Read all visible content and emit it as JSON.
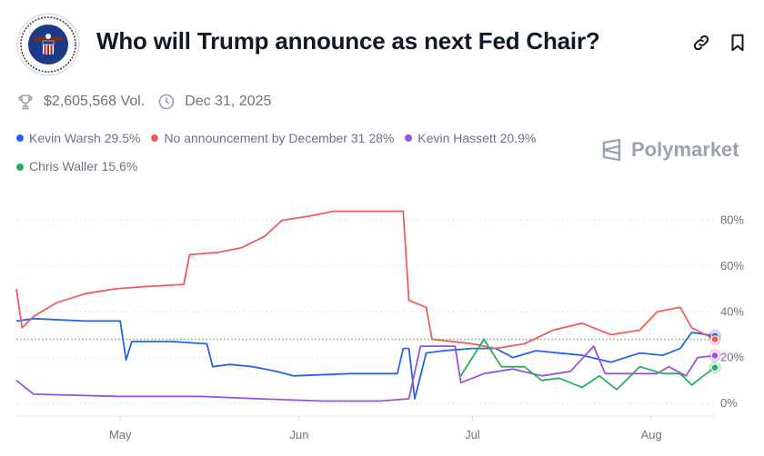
{
  "header": {
    "title": "Who will Trump announce as next Fed Chair?",
    "seal_icon": "federal-reserve-seal",
    "link_icon": "link-icon",
    "bookmark_icon": "bookmark-icon"
  },
  "meta": {
    "volume": "$2,605,568 Vol.",
    "end_date": "Dec 31, 2025"
  },
  "legend": [
    {
      "label": "Kevin Warsh 29.5%",
      "color": "#2563eb"
    },
    {
      "label": "No announcement by December 31 28%",
      "color": "#ef5b5b"
    },
    {
      "label": "Kevin Hassett 20.9%",
      "color": "#9b51e0"
    },
    {
      "label": "Chris Waller 15.6%",
      "color": "#27ae60"
    }
  ],
  "brand": "Polymarket",
  "chart_data": {
    "type": "line",
    "x_ticks": [
      "May",
      "Jun",
      "Jul",
      "Aug"
    ],
    "y_ticks": [
      "0%",
      "20%",
      "40%",
      "60%",
      "80%"
    ],
    "ylim": [
      0,
      85
    ],
    "xlim": [
      "2025-04-13",
      "2025-08-12"
    ],
    "grid": true,
    "reference_line": 28,
    "series": [
      {
        "name": "Kevin Warsh",
        "color": "#2563eb",
        "points": [
          [
            "2025-04-13",
            36
          ],
          [
            "2025-04-16",
            37
          ],
          [
            "2025-04-25",
            36
          ],
          [
            "2025-05-01",
            36
          ],
          [
            "2025-05-02",
            19
          ],
          [
            "2025-05-03",
            27
          ],
          [
            "2025-05-10",
            27
          ],
          [
            "2025-05-16",
            26
          ],
          [
            "2025-05-17",
            16
          ],
          [
            "2025-05-20",
            17
          ],
          [
            "2025-05-24",
            16
          ],
          [
            "2025-05-28",
            14
          ],
          [
            "2025-05-31",
            12
          ],
          [
            "2025-06-10",
            13
          ],
          [
            "2025-06-18",
            13
          ],
          [
            "2025-06-19",
            24
          ],
          [
            "2025-06-20",
            24
          ],
          [
            "2025-06-21",
            2
          ],
          [
            "2025-06-23",
            22
          ],
          [
            "2025-06-26",
            23
          ],
          [
            "2025-07-01",
            24
          ],
          [
            "2025-07-05",
            24
          ],
          [
            "2025-07-08",
            20
          ],
          [
            "2025-07-12",
            23
          ],
          [
            "2025-07-20",
            21
          ],
          [
            "2025-07-25",
            18
          ],
          [
            "2025-07-30",
            22
          ],
          [
            "2025-08-03",
            21
          ],
          [
            "2025-08-06",
            24
          ],
          [
            "2025-08-08",
            31
          ],
          [
            "2025-08-12",
            29.5
          ]
        ]
      },
      {
        "name": "No announcement by December 31",
        "color": "#ef5b5b",
        "points": [
          [
            "2025-04-13",
            50
          ],
          [
            "2025-04-14",
            33
          ],
          [
            "2025-04-16",
            38
          ],
          [
            "2025-04-20",
            44
          ],
          [
            "2025-04-25",
            48
          ],
          [
            "2025-04-30",
            50
          ],
          [
            "2025-05-05",
            51
          ],
          [
            "2025-05-12",
            52
          ],
          [
            "2025-05-13",
            65
          ],
          [
            "2025-05-18",
            66
          ],
          [
            "2025-05-22",
            68
          ],
          [
            "2025-05-26",
            73
          ],
          [
            "2025-05-29",
            80
          ],
          [
            "2025-06-03",
            82
          ],
          [
            "2025-06-07",
            84
          ],
          [
            "2025-06-19",
            84
          ],
          [
            "2025-06-20",
            45
          ],
          [
            "2025-06-23",
            42
          ],
          [
            "2025-06-24",
            28
          ],
          [
            "2025-07-01",
            26
          ],
          [
            "2025-07-05",
            24
          ],
          [
            "2025-07-10",
            26
          ],
          [
            "2025-07-15",
            32
          ],
          [
            "2025-07-20",
            35
          ],
          [
            "2025-07-25",
            30
          ],
          [
            "2025-07-30",
            32
          ],
          [
            "2025-08-02",
            40
          ],
          [
            "2025-08-06",
            42
          ],
          [
            "2025-08-08",
            33
          ],
          [
            "2025-08-12",
            28
          ]
        ]
      },
      {
        "name": "Kevin Hassett",
        "color": "#9b51e0",
        "points": [
          [
            "2025-04-13",
            10
          ],
          [
            "2025-04-16",
            4
          ],
          [
            "2025-05-01",
            3
          ],
          [
            "2025-05-15",
            3
          ],
          [
            "2025-05-25",
            2
          ],
          [
            "2025-06-05",
            1
          ],
          [
            "2025-06-15",
            1
          ],
          [
            "2025-06-20",
            2
          ],
          [
            "2025-06-22",
            25
          ],
          [
            "2025-06-28",
            25
          ],
          [
            "2025-06-29",
            9
          ],
          [
            "2025-07-03",
            13
          ],
          [
            "2025-07-08",
            15
          ],
          [
            "2025-07-13",
            12
          ],
          [
            "2025-07-18",
            14
          ],
          [
            "2025-07-22",
            25
          ],
          [
            "2025-07-24",
            13
          ],
          [
            "2025-07-29",
            13
          ],
          [
            "2025-08-02",
            13
          ],
          [
            "2025-08-04",
            16
          ],
          [
            "2025-08-07",
            12
          ],
          [
            "2025-08-09",
            20
          ],
          [
            "2025-08-12",
            20.9
          ]
        ]
      },
      {
        "name": "Chris Waller",
        "color": "#27ae60",
        "points": [
          [
            "2025-06-29",
            12
          ],
          [
            "2025-07-03",
            28
          ],
          [
            "2025-07-06",
            16
          ],
          [
            "2025-07-10",
            16
          ],
          [
            "2025-07-13",
            10
          ],
          [
            "2025-07-16",
            11
          ],
          [
            "2025-07-20",
            7
          ],
          [
            "2025-07-23",
            12
          ],
          [
            "2025-07-26",
            6
          ],
          [
            "2025-07-30",
            16
          ],
          [
            "2025-08-03",
            13
          ],
          [
            "2025-08-06",
            13
          ],
          [
            "2025-08-08",
            8
          ],
          [
            "2025-08-10",
            12
          ],
          [
            "2025-08-12",
            15.6
          ]
        ]
      }
    ]
  }
}
